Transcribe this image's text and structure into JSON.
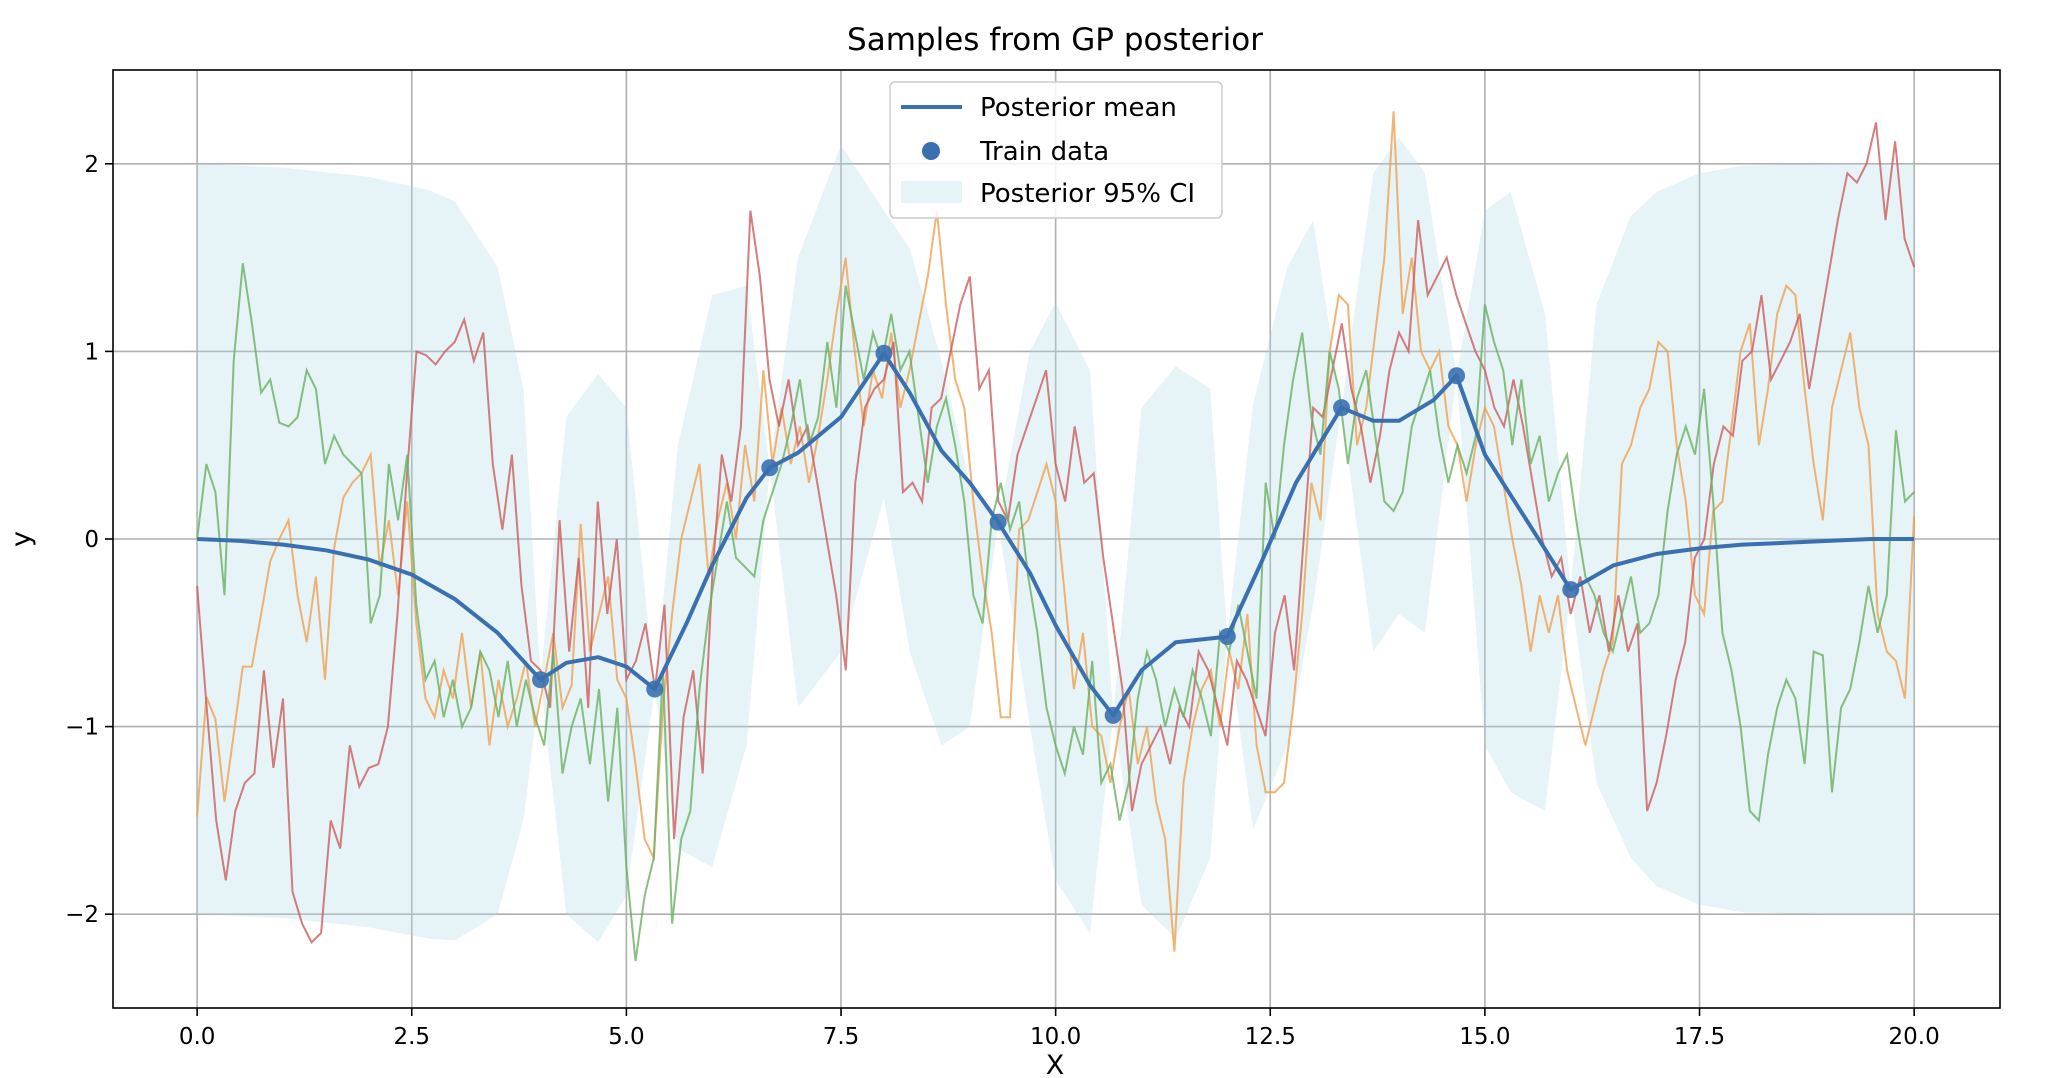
{
  "chart_data": {
    "type": "line",
    "title": "Samples from GP posterior",
    "xlabel": "X",
    "ylabel": "y",
    "xlim": [
      -0.98,
      21.0
    ],
    "ylim": [
      -2.5,
      2.5
    ],
    "xticks": [
      0.0,
      2.5,
      5.0,
      7.5,
      10.0,
      12.5,
      15.0,
      17.5,
      20.0
    ],
    "xtick_labels": [
      "0.0",
      "2.5",
      "5.0",
      "7.5",
      "10.0",
      "12.5",
      "15.0",
      "17.5",
      "20.0"
    ],
    "yticks": [
      -2,
      -1,
      0,
      1,
      2
    ],
    "ytick_labels": [
      "−2",
      "−1",
      "0",
      "1",
      "2"
    ],
    "grid": true,
    "legend_position": "top-center",
    "legend": [
      {
        "label": "Posterior mean",
        "kind": "line",
        "color": "#3a70b0"
      },
      {
        "label": "Train data",
        "kind": "marker",
        "color": "#3a70b0"
      },
      {
        "label": "Posterior 95% CI",
        "kind": "patch",
        "color": "#add8e6"
      }
    ],
    "colors": {
      "mean": "#3a70b0",
      "ci": "#add8e6",
      "sample_orange": "#f0a050",
      "sample_red": "#cc5c5c",
      "sample_green": "#6ab060"
    },
    "train_data": {
      "x": [
        4.0,
        5.33,
        6.67,
        8.0,
        9.33,
        10.67,
        12.0,
        13.33,
        14.67,
        16.0
      ],
      "y": [
        -0.75,
        -0.8,
        0.38,
        0.99,
        0.09,
        -0.94,
        -0.52,
        0.7,
        0.87,
        -0.27
      ]
    },
    "posterior_mean": {
      "x": [
        0,
        0.5,
        1.0,
        1.5,
        2.0,
        2.5,
        3.0,
        3.5,
        4.0,
        4.3,
        4.67,
        5.0,
        5.33,
        5.7,
        6.0,
        6.4,
        6.67,
        7.0,
        7.5,
        8.0,
        8.3,
        8.67,
        9.0,
        9.33,
        9.7,
        10.0,
        10.4,
        10.67,
        11.0,
        11.4,
        12.0,
        12.4,
        12.8,
        13.33,
        13.7,
        14.0,
        14.4,
        14.67,
        15.0,
        15.5,
        16.0,
        16.5,
        17.0,
        17.5,
        18.0,
        18.5,
        19.0,
        19.5,
        20.0
      ],
      "y": [
        0.0,
        -0.01,
        -0.03,
        -0.06,
        -0.11,
        -0.19,
        -0.32,
        -0.5,
        -0.75,
        -0.66,
        -0.63,
        -0.68,
        -0.8,
        -0.45,
        -0.14,
        0.22,
        0.38,
        0.46,
        0.65,
        0.99,
        0.78,
        0.47,
        0.3,
        0.09,
        -0.18,
        -0.46,
        -0.78,
        -0.94,
        -0.7,
        -0.55,
        -0.52,
        -0.12,
        0.3,
        0.7,
        0.63,
        0.63,
        0.74,
        0.87,
        0.45,
        0.09,
        -0.27,
        -0.14,
        -0.08,
        -0.05,
        -0.03,
        -0.02,
        -0.01,
        0.0,
        0.0
      ]
    },
    "ci": {
      "x": [
        0,
        1,
        2,
        2.7,
        3,
        3.5,
        3.8,
        4.0,
        4.3,
        4.67,
        5.0,
        5.33,
        5.6,
        6.0,
        6.4,
        6.67,
        7.0,
        7.5,
        8.0,
        8.3,
        8.67,
        9.0,
        9.33,
        9.7,
        10.0,
        10.4,
        10.67,
        11.0,
        11.4,
        11.8,
        12.0,
        12.3,
        12.7,
        13.0,
        13.33,
        13.7,
        14.0,
        14.3,
        14.67,
        15.0,
        15.3,
        15.7,
        16.0,
        16.3,
        16.7,
        17.0,
        17.5,
        18,
        19,
        20
      ],
      "upper": [
        2.0,
        1.98,
        1.93,
        1.86,
        1.8,
        1.45,
        0.8,
        -0.75,
        0.65,
        0.88,
        0.7,
        -0.8,
        0.5,
        1.3,
        1.35,
        0.38,
        1.5,
        2.1,
        1.75,
        1.55,
        0.95,
        0.3,
        0.09,
        1.0,
        1.26,
        0.9,
        -0.94,
        0.7,
        0.92,
        0.8,
        -0.52,
        0.72,
        1.45,
        1.7,
        0.7,
        1.95,
        2.14,
        1.95,
        0.87,
        1.75,
        1.85,
        1.2,
        -0.27,
        1.25,
        1.72,
        1.85,
        1.95,
        1.99,
        2.0,
        2.0
      ],
      "lower": [
        -2.0,
        -2.02,
        -2.07,
        -2.13,
        -2.14,
        -2.0,
        -1.5,
        -0.75,
        -2.0,
        -2.15,
        -1.9,
        -0.8,
        -1.65,
        -1.75,
        -1.1,
        0.38,
        -0.9,
        -0.6,
        0.22,
        -0.6,
        -1.1,
        -1.0,
        0.09,
        -1.0,
        -1.82,
        -2.1,
        -0.94,
        -1.95,
        -2.13,
        -1.7,
        -0.52,
        -1.55,
        -1.1,
        -0.35,
        0.7,
        -0.6,
        -0.4,
        -0.5,
        0.87,
        -1.1,
        -1.35,
        -1.45,
        -0.27,
        -1.3,
        -1.7,
        -1.85,
        -1.95,
        -1.99,
        -2.0,
        -2.0
      ]
    },
    "series": [
      {
        "color": "#f0a050",
        "y": [
          -1.48,
          -0.84,
          -0.96,
          -1.4,
          -1.04,
          -0.68,
          -0.68,
          -0.4,
          -0.12,
          0.0,
          0.1,
          -0.3,
          -0.55,
          -0.2,
          -0.75,
          -0.05,
          0.22,
          0.3,
          0.35,
          0.45,
          -0.15,
          0.1,
          -0.3,
          0.2,
          -0.45,
          -0.85,
          -0.95,
          -0.7,
          -0.85,
          -0.5,
          -0.9,
          -0.6,
          -1.1,
          -0.75,
          -1.0,
          -0.85,
          -0.65,
          -1.0,
          -0.75,
          -0.5,
          -0.9,
          -0.78,
          0.08,
          -0.6,
          -0.4,
          -0.2,
          -0.75,
          -0.85,
          -1.2,
          -1.6,
          -1.7,
          -0.9,
          -0.4,
          0.0,
          0.2,
          0.4,
          -0.2,
          0.1,
          0.3,
          0.0,
          0.5,
          0.2,
          0.9,
          0.4,
          0.7,
          0.4,
          0.6,
          0.3,
          0.55,
          0.85,
          1.2,
          1.5,
          1.0,
          0.6,
          0.9,
          0.75,
          1.1,
          0.7,
          0.9,
          1.15,
          1.4,
          1.75,
          1.25,
          0.85,
          0.7,
          0.2,
          -0.2,
          -0.5,
          -0.95,
          -0.95,
          0.05,
          0.1,
          0.25,
          0.4,
          0.2,
          -0.3,
          -0.8,
          -0.5,
          -1.0,
          -1.05,
          -1.3,
          -1.0,
          -0.8,
          -1.2,
          -1.0,
          -1.4,
          -1.6,
          -2.2,
          -1.3,
          -1.0,
          -0.8,
          -0.7,
          -1.0,
          -0.6,
          -0.8,
          -0.4,
          -1.1,
          -1.35,
          -1.35,
          -1.3,
          -0.9,
          -0.4,
          0.3,
          0.1,
          1.0,
          1.3,
          1.25,
          0.5,
          0.7,
          1.1,
          1.5,
          2.28,
          1.2,
          1.5,
          1.0,
          0.9,
          1.0,
          0.6,
          0.5,
          0.2,
          0.5,
          0.7,
          0.6,
          0.3,
          0.0,
          -0.25,
          -0.6,
          -0.3,
          -0.5,
          -0.3,
          -0.7,
          -0.9,
          -1.1,
          -0.9,
          -0.7,
          -0.55,
          0.4,
          0.5,
          0.7,
          0.8,
          1.05,
          1.0,
          0.5,
          0.2,
          -0.3,
          -0.4,
          0.15,
          0.2,
          0.6,
          1.0,
          1.15,
          0.5,
          0.8,
          1.2,
          1.35,
          1.3,
          0.8,
          0.4,
          0.1,
          0.7,
          0.9,
          1.1,
          0.7,
          0.5,
          -0.4,
          -0.6,
          -0.65,
          -0.85,
          0.12
        ]
      },
      {
        "color": "#cc5c5c",
        "y": [
          -0.25,
          -0.9,
          -1.5,
          -1.82,
          -1.45,
          -1.3,
          -1.25,
          -0.7,
          -1.22,
          -0.85,
          -1.88,
          -2.05,
          -2.15,
          -2.1,
          -1.5,
          -1.65,
          -1.1,
          -1.32,
          -1.22,
          -1.2,
          -1.0,
          -0.4,
          0.35,
          1.0,
          0.98,
          0.93,
          1.0,
          1.05,
          1.17,
          0.95,
          1.1,
          0.4,
          0.05,
          0.45,
          -0.25,
          -0.65,
          -0.7,
          -0.9,
          0.1,
          -0.6,
          -0.1,
          -0.9,
          0.2,
          -0.4,
          0.0,
          -0.75,
          -0.65,
          -0.45,
          -0.8,
          -0.35,
          -1.6,
          -0.95,
          -0.7,
          -1.25,
          -0.2,
          0.45,
          0.2,
          0.6,
          1.75,
          1.4,
          0.85,
          0.6,
          0.85,
          0.5,
          0.6,
          0.3,
          0.0,
          -0.3,
          -0.7,
          0.3,
          0.7,
          0.8,
          0.85,
          1.05,
          0.25,
          0.3,
          0.2,
          0.7,
          0.75,
          1.0,
          1.25,
          1.4,
          0.8,
          0.9,
          0.2,
          0.1,
          0.45,
          0.6,
          0.75,
          0.9,
          0.4,
          0.2,
          0.6,
          0.3,
          0.35,
          -0.1,
          -0.45,
          -0.8,
          -1.45,
          -1.2,
          -1.1,
          -1.0,
          -1.2,
          -0.9,
          -1.0,
          -0.6,
          -0.7,
          -0.9,
          -1.1,
          -0.65,
          -0.75,
          -0.9,
          -1.05,
          -0.5,
          -0.3,
          -0.7,
          0.0,
          0.7,
          0.65,
          0.9,
          1.15,
          0.8,
          0.6,
          0.3,
          0.55,
          0.9,
          1.1,
          1.0,
          1.7,
          1.3,
          1.4,
          1.5,
          1.3,
          1.15,
          1.0,
          0.9,
          0.7,
          0.6,
          0.85,
          0.6,
          0.3,
          0.0,
          -0.2,
          -0.1,
          -0.4,
          -0.2,
          -0.5,
          -0.3,
          -0.6,
          -0.3,
          -0.6,
          -0.45,
          -1.45,
          -1.3,
          -1.05,
          -0.75,
          -0.55,
          -0.1,
          0.0,
          0.4,
          0.6,
          0.55,
          0.95,
          1.0,
          1.3,
          0.85,
          0.95,
          1.05,
          1.2,
          0.8,
          1.1,
          1.4,
          1.7,
          1.95,
          1.9,
          2.0,
          2.22,
          1.7,
          2.12,
          1.6,
          1.45
        ]
      },
      {
        "color": "#6ab060",
        "y": [
          0.0,
          0.4,
          0.25,
          -0.3,
          0.95,
          1.47,
          1.15,
          0.78,
          0.85,
          0.62,
          0.6,
          0.65,
          0.9,
          0.8,
          0.4,
          0.55,
          0.45,
          0.4,
          0.35,
          -0.45,
          -0.3,
          0.4,
          0.1,
          0.45,
          -0.35,
          -0.75,
          -0.65,
          -0.95,
          -0.75,
          -1.0,
          -0.9,
          -0.6,
          -0.7,
          -0.95,
          -0.65,
          -1.0,
          -0.75,
          -0.95,
          -1.1,
          -0.6,
          -1.25,
          -1.0,
          -0.85,
          -1.2,
          -0.8,
          -1.4,
          -0.9,
          -1.75,
          -2.25,
          -1.9,
          -1.7,
          -0.7,
          -2.05,
          -1.6,
          -1.45,
          -0.8,
          -0.4,
          -0.1,
          0.2,
          -0.1,
          -0.15,
          -0.2,
          0.1,
          0.25,
          0.4,
          0.6,
          0.85,
          0.5,
          0.65,
          1.05,
          0.7,
          1.35,
          1.1,
          0.85,
          1.1,
          0.95,
          1.2,
          0.9,
          1.0,
          0.65,
          0.3,
          0.6,
          0.75,
          0.5,
          0.2,
          -0.3,
          -0.45,
          0.1,
          0.3,
          0.05,
          0.2,
          -0.2,
          -0.5,
          -0.9,
          -1.1,
          -1.25,
          -1.0,
          -1.15,
          -0.65,
          -1.3,
          -1.2,
          -1.5,
          -1.3,
          -0.85,
          -0.6,
          -0.75,
          -1.0,
          -0.8,
          -0.95,
          -0.7,
          -0.85,
          -1.05,
          -0.5,
          -0.6,
          -0.35,
          -0.6,
          -0.85,
          0.3,
          0.0,
          0.5,
          0.85,
          1.1,
          0.65,
          0.45,
          1.0,
          0.8,
          0.4,
          0.75,
          0.9,
          0.55,
          0.2,
          0.15,
          0.25,
          0.6,
          0.75,
          0.9,
          0.55,
          0.3,
          0.5,
          0.35,
          0.55,
          1.25,
          1.05,
          0.9,
          0.5,
          0.85,
          0.4,
          0.55,
          0.2,
          0.35,
          0.45,
          0.1,
          -0.2,
          -0.3,
          -0.5,
          -0.6,
          -0.4,
          -0.2,
          -0.5,
          -0.45,
          -0.3,
          0.15,
          0.45,
          0.6,
          0.45,
          0.8,
          0.2,
          -0.5,
          -0.7,
          -1.0,
          -1.45,
          -1.5,
          -1.15,
          -0.9,
          -0.75,
          -0.85,
          -1.2,
          -0.6,
          -0.62,
          -1.35,
          -0.9,
          -0.8,
          -0.55,
          -0.25,
          -0.5,
          -0.3,
          0.58,
          0.2,
          0.25
        ]
      }
    ]
  }
}
